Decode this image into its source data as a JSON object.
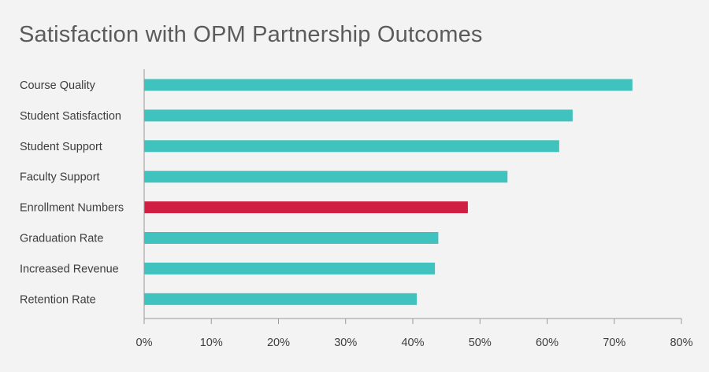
{
  "chart_data": {
    "type": "bar",
    "orientation": "horizontal",
    "title": "Satisfaction with OPM Partnership Outcomes",
    "categories": [
      "Course Quality",
      "Student Satisfaction",
      "Student Support",
      "Faculty Support",
      "Enrollment Numbers",
      "Graduation Rate",
      "Increased Revenue",
      "Retention Rate"
    ],
    "values": [
      72.7,
      63.8,
      61.8,
      54.1,
      48.2,
      43.8,
      43.3,
      40.6
    ],
    "highlight_index": 4,
    "xlim": [
      0,
      80
    ],
    "x_ticks": [
      "0%",
      "10%",
      "20%",
      "30%",
      "40%",
      "50%",
      "60%",
      "70%",
      "80%"
    ],
    "colors": {
      "bar": "#40c2be",
      "highlight": "#d11f44",
      "axis": "#9a9a9a",
      "background": "#f3f3f3"
    },
    "grid": false,
    "legend": "none"
  }
}
